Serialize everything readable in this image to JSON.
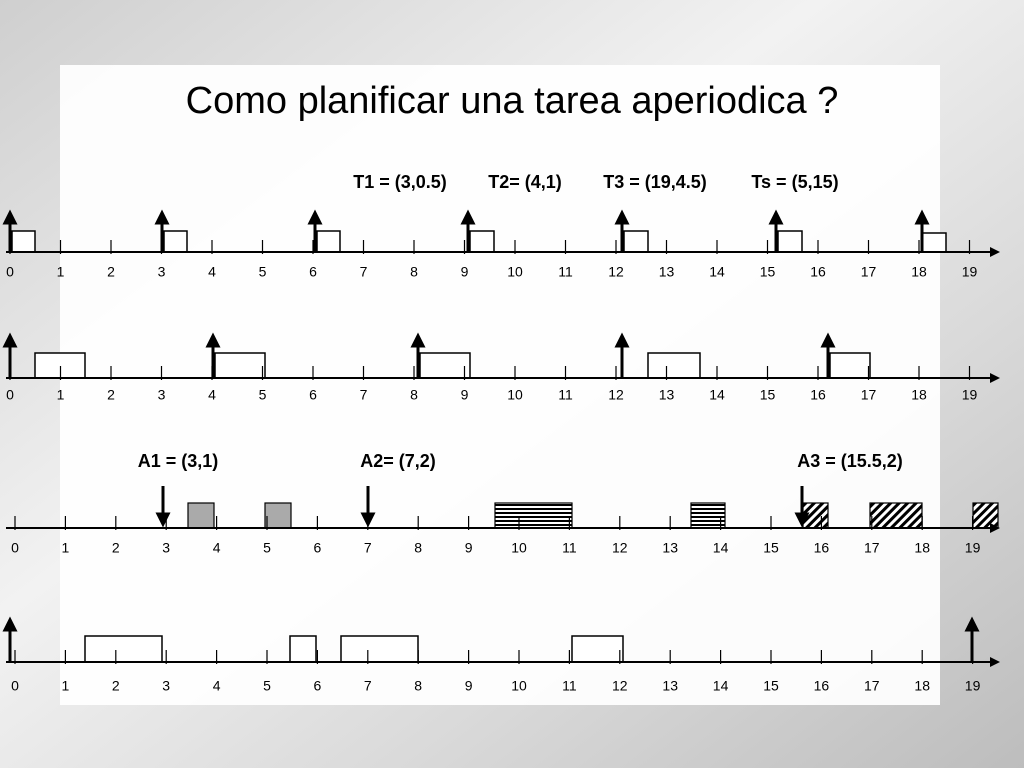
{
  "title": "Como planificar una tarea aperiodica ?",
  "parameters": [
    "T1 = (3,0.5)",
    "T2= (4,1)",
    "T3 = (19,4.5)",
    "Ts = (5,15)"
  ],
  "arrivals": [
    "A1 = (3,1)",
    "A2= (7,2)",
    "A3 = (15.5,2)"
  ],
  "timelines": [
    {
      "ticks": [
        0,
        1,
        2,
        3,
        4,
        5,
        6,
        7,
        8,
        9,
        10,
        11,
        12,
        13,
        14,
        15,
        16,
        17,
        18,
        19
      ]
    },
    {
      "ticks": [
        0,
        1,
        2,
        3,
        4,
        5,
        6,
        7,
        8,
        9,
        10,
        11,
        12,
        13,
        14,
        15,
        16,
        17,
        18,
        19
      ]
    },
    {
      "ticks": [
        0,
        1,
        2,
        3,
        4,
        5,
        6,
        7,
        8,
        9,
        10,
        11,
        12,
        13,
        14,
        15,
        16,
        17,
        18,
        19
      ]
    },
    {
      "ticks": [
        0,
        1,
        2,
        3,
        4,
        5,
        6,
        7,
        8,
        9,
        10,
        11,
        12,
        13,
        14,
        15,
        16,
        17,
        18,
        19
      ]
    }
  ]
}
